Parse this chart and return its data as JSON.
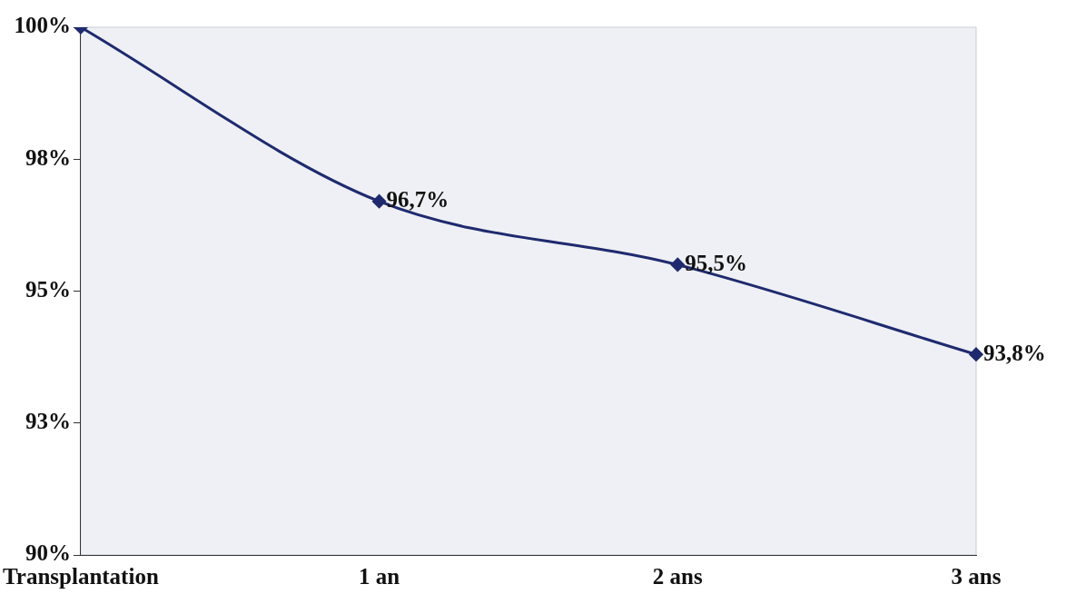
{
  "chart_data": {
    "type": "line",
    "categories": [
      "Transplantation",
      "1 an",
      "2 ans",
      "3 ans"
    ],
    "series": [
      {
        "color": "#1f2a6e",
        "values": [
          100,
          96.7,
          95.5,
          93.8
        ],
        "value_labels": [
          null,
          "96,7%",
          "95,5%",
          "93,8%"
        ]
      }
    ],
    "ylim": [
      90,
      100
    ],
    "yticks": [
      {
        "value": 90,
        "label": "90%"
      },
      {
        "value": 92.5,
        "label": "93%"
      },
      {
        "value": 95,
        "label": "95%"
      },
      {
        "value": 97.5,
        "label": "98%"
      },
      {
        "value": 100,
        "label": "100%"
      }
    ],
    "grid": false,
    "legend": false,
    "marker": "diamond",
    "line_style": "solid"
  }
}
